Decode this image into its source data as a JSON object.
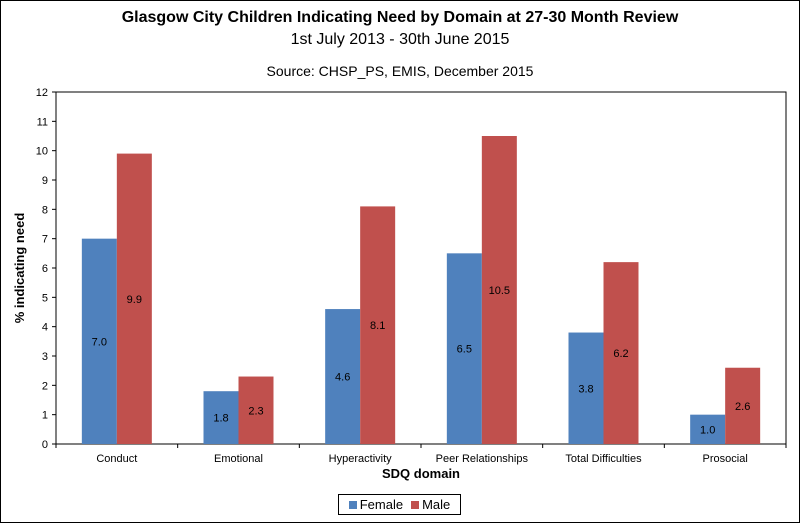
{
  "chart_data": {
    "type": "bar",
    "title": "Glasgow City Children Indicating Need by Domain at 27-30 Month Review",
    "subtitle": "1st July 2013 - 30th June 2015",
    "source": "Source: CHSP_PS, EMIS, December 2015",
    "xlabel": "SDQ domain",
    "ylabel": "% indicating need",
    "ylim": [
      0,
      12
    ],
    "yticks": [
      "0",
      "1",
      "2",
      "3",
      "4",
      "5",
      "6",
      "7",
      "8",
      "9",
      "10",
      "11",
      "12"
    ],
    "grid": false,
    "legend_position": "bottom-center",
    "categories": [
      "Conduct",
      "Emotional",
      "Hyperactivity",
      "Peer Relationships",
      "Total Difficulties",
      "Prosocial"
    ],
    "series": [
      {
        "name": "Female",
        "color": "#4f81bd",
        "values": [
          7.0,
          1.8,
          4.6,
          6.5,
          3.8,
          1.0
        ],
        "labels": [
          "7.0",
          "1.8",
          "4.6",
          "6.5",
          "3.8",
          "1.0"
        ]
      },
      {
        "name": "Male",
        "color": "#c0504d",
        "values": [
          9.9,
          2.3,
          8.1,
          10.5,
          6.2,
          2.6
        ],
        "labels": [
          "9.9",
          "2.3",
          "8.1",
          "10.5",
          "6.2",
          "2.6"
        ]
      }
    ]
  }
}
